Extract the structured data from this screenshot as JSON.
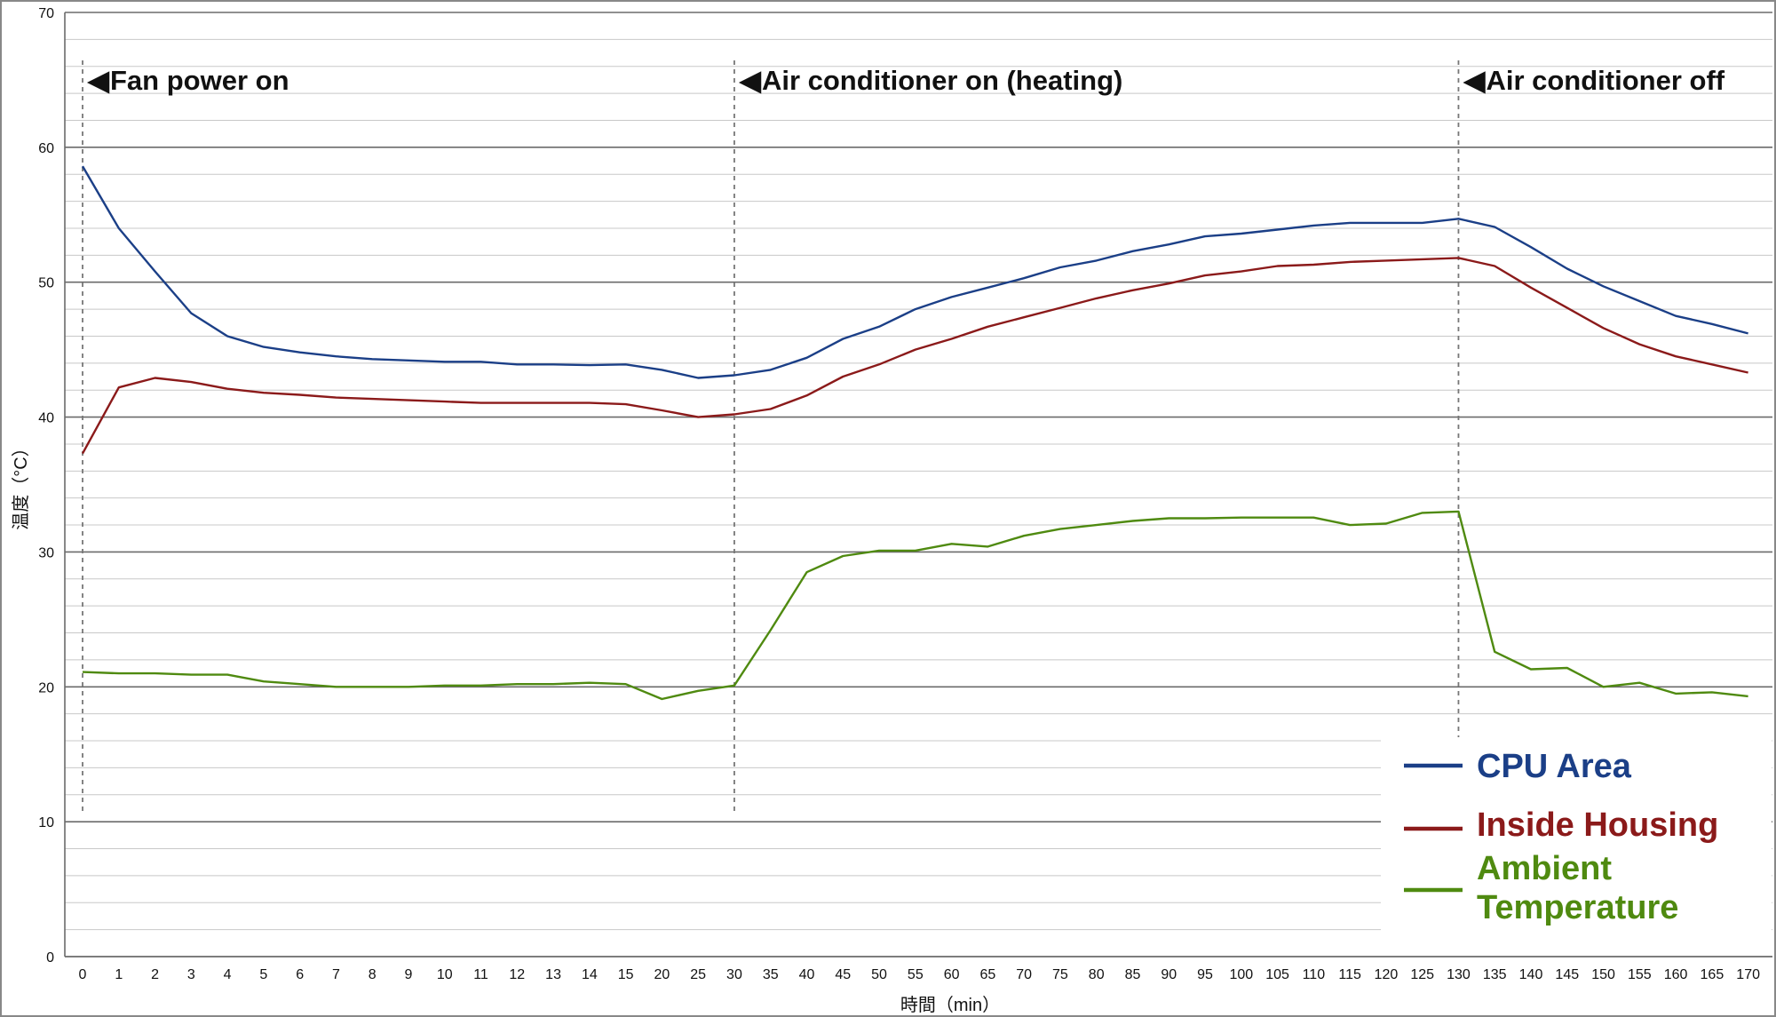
{
  "chart_data": {
    "type": "line",
    "xlabel": "時間（min）",
    "ylabel": "温度（°C）",
    "ylim": [
      0,
      70
    ],
    "y_major_ticks": [
      "0",
      "10",
      "20",
      "30",
      "40",
      "50",
      "60",
      "70"
    ],
    "grid": "on",
    "legend_position": "bottom-right",
    "categories": [
      "0",
      "1",
      "2",
      "3",
      "4",
      "5",
      "6",
      "7",
      "8",
      "9",
      "10",
      "11",
      "12",
      "13",
      "14",
      "15",
      "20",
      "25",
      "30",
      "35",
      "40",
      "45",
      "50",
      "55",
      "60",
      "65",
      "70",
      "75",
      "80",
      "85",
      "90",
      "95",
      "100",
      "105",
      "110",
      "115",
      "120",
      "125",
      "130",
      "135",
      "140",
      "145",
      "150",
      "155",
      "160",
      "165",
      "170"
    ],
    "series": [
      {
        "name": "CPU Area",
        "color": "#1b3f87",
        "values": [
          58.6,
          54.0,
          50.8,
          47.7,
          46.0,
          45.2,
          44.8,
          44.5,
          44.3,
          44.2,
          44.1,
          44.1,
          43.9,
          43.9,
          43.85,
          43.9,
          43.5,
          42.9,
          43.1,
          43.5,
          44.4,
          45.8,
          46.7,
          48.0,
          48.9,
          49.6,
          50.3,
          51.1,
          51.6,
          52.3,
          52.8,
          53.4,
          53.6,
          53.9,
          54.2,
          54.4,
          54.4,
          54.4,
          54.7,
          54.1,
          52.6,
          51.0,
          49.7,
          48.6,
          47.5,
          46.9,
          46.2
        ]
      },
      {
        "name": "Inside Housing",
        "color": "#8b1a1a",
        "values": [
          37.3,
          42.2,
          42.9,
          42.6,
          42.1,
          41.8,
          41.65,
          41.45,
          41.35,
          41.25,
          41.15,
          41.05,
          41.05,
          41.05,
          41.05,
          40.95,
          40.5,
          40.0,
          40.2,
          40.6,
          41.6,
          43.0,
          43.9,
          45.0,
          45.8,
          46.7,
          47.4,
          48.1,
          48.8,
          49.4,
          49.9,
          50.5,
          50.8,
          51.2,
          51.3,
          51.5,
          51.6,
          51.7,
          51.8,
          51.2,
          49.6,
          48.1,
          46.6,
          45.4,
          44.5,
          43.9,
          43.3
        ]
      },
      {
        "name": "Ambient Temperature",
        "color": "#4f8a10",
        "values": [
          21.1,
          21.0,
          21.0,
          20.9,
          20.9,
          20.4,
          20.2,
          20.0,
          20.0,
          20.0,
          20.1,
          20.1,
          20.2,
          20.2,
          20.3,
          20.2,
          19.1,
          19.7,
          20.1,
          24.2,
          28.5,
          29.7,
          30.1,
          30.1,
          30.6,
          30.4,
          31.2,
          31.7,
          32.0,
          32.3,
          32.5,
          32.5,
          32.55,
          32.55,
          32.55,
          32.0,
          32.1,
          32.9,
          33.0,
          22.6,
          21.3,
          21.4,
          20.0,
          20.3,
          19.5,
          19.6,
          19.3
        ]
      }
    ],
    "annotations": [
      {
        "x": "0",
        "text": "Fan power on",
        "marker": "◀"
      },
      {
        "x": "30",
        "text": "Air conditioner on (heating)",
        "marker": "◀"
      },
      {
        "x": "130",
        "text": "Air conditioner off",
        "marker": "◀"
      }
    ],
    "legend_entries": [
      {
        "lines": [
          "CPU Area"
        ],
        "color": "#1b3f87"
      },
      {
        "lines": [
          "Inside Housing"
        ],
        "color": "#8b1a1a"
      },
      {
        "lines": [
          "Ambient",
          "Temperature"
        ],
        "color": "#4f8a10"
      }
    ]
  }
}
